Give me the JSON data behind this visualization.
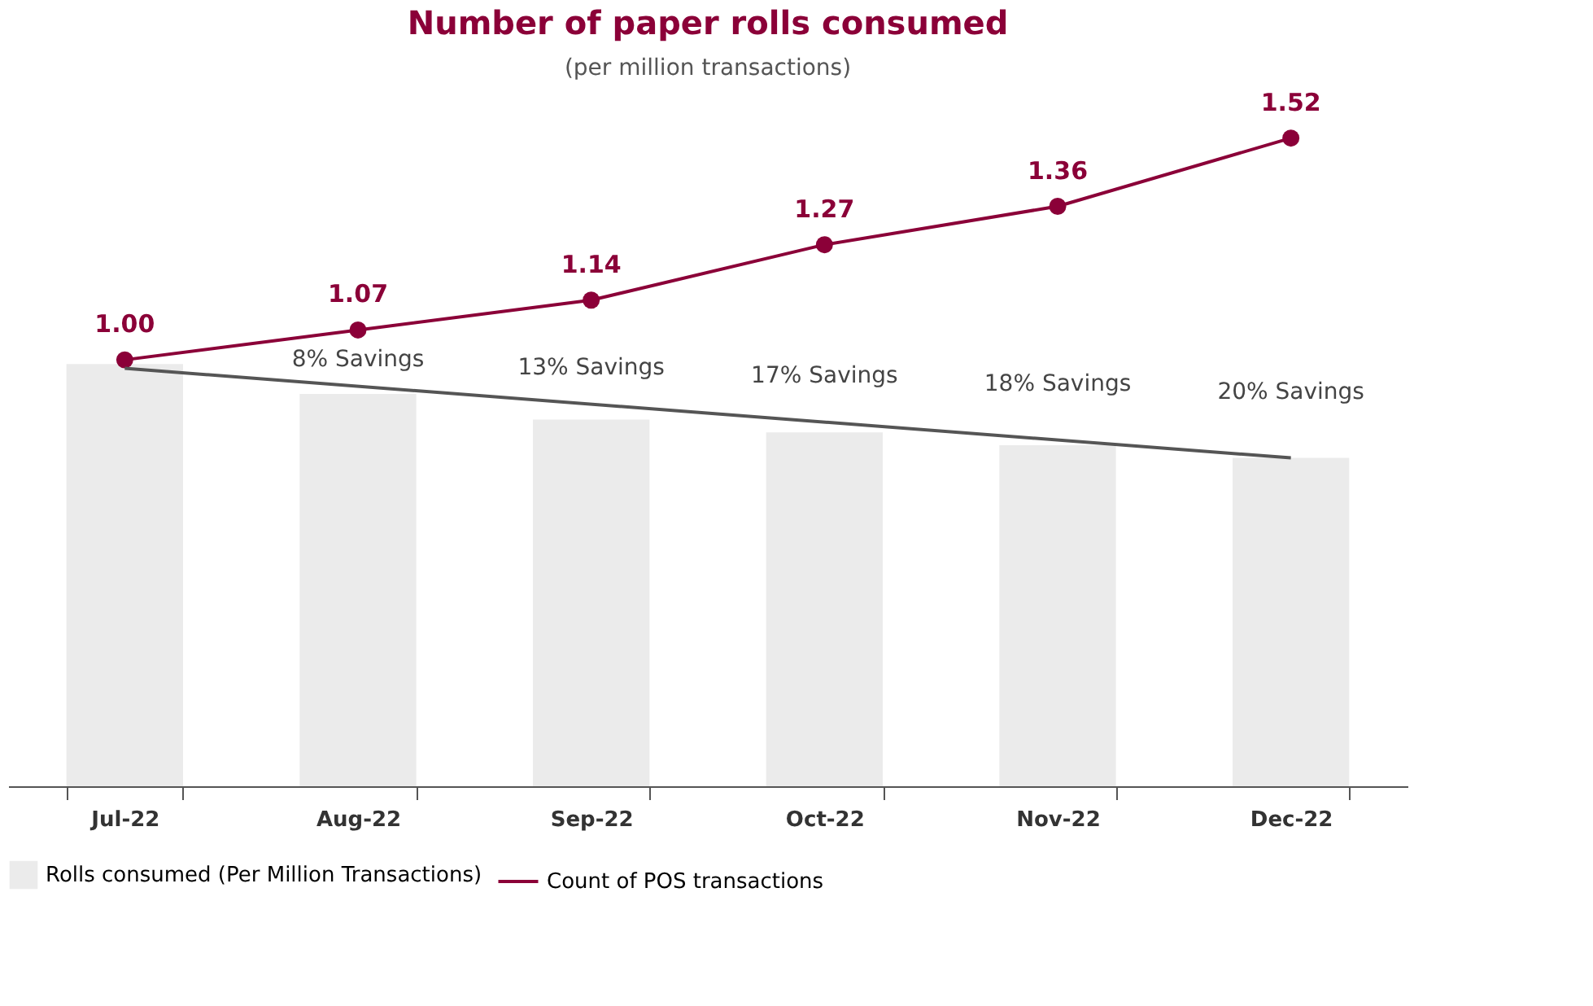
{
  "chart_data": {
    "type": "bar",
    "title": "Number of paper rolls consumed",
    "subtitle": "(per million transactions)",
    "categories": [
      "Jul-22",
      "Aug-22",
      "Sep-22",
      "Oct-22",
      "Nov-22",
      "Dec-22"
    ],
    "series": [
      {
        "name": "Rolls consumed (Per Million Transactions)",
        "color": "#ebebeb",
        "values": [
          0.99,
          0.92,
          0.86,
          0.83,
          0.8,
          0.77
        ]
      },
      {
        "name": "Count of POS transactions",
        "type": "line",
        "color": "#8b0038",
        "marker": "circle",
        "line_style": "solid",
        "values": [
          1.0,
          1.07,
          1.14,
          1.27,
          1.36,
          1.52
        ],
        "value_labels": [
          "1.00",
          "1.07",
          "1.14",
          "1.27",
          "1.36",
          "1.52"
        ]
      },
      {
        "type": "line",
        "color": "#555555",
        "line_style": "solid",
        "x": [
          "Jul-22",
          "Dec-22"
        ],
        "values": [
          0.98,
          0.77
        ]
      }
    ],
    "annotations": [
      "8% Savings",
      "13% Savings",
      "17% Savings",
      "18% Savings",
      "20% Savings"
    ],
    "legend": "bottom",
    "grid": false,
    "tick_labels": "x"
  }
}
